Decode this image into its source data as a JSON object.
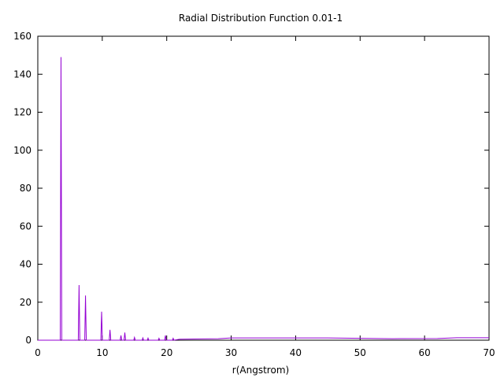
{
  "chart_data": {
    "type": "line",
    "title": "Radial Distribution Function 0.01-1",
    "xlabel": "r(Angstrom)",
    "ylabel": "",
    "xlim": [
      0,
      70
    ],
    "ylim": [
      0,
      160
    ],
    "x_ticks": [
      "0",
      "10",
      "20",
      "30",
      "40",
      "50",
      "60",
      "70"
    ],
    "y_ticks": [
      "0",
      "20",
      "40",
      "60",
      "80",
      "100",
      "120",
      "140",
      "160"
    ],
    "grid": false,
    "legend": "none",
    "series": [
      {
        "color": "#9400d3",
        "peaks": [
          {
            "r": 3.6,
            "g": 149
          },
          {
            "r": 6.4,
            "g": 29
          },
          {
            "r": 7.4,
            "g": 23.5
          },
          {
            "r": 9.9,
            "g": 15
          },
          {
            "r": 11.2,
            "g": 5.5
          },
          {
            "r": 12.9,
            "g": 2.5
          },
          {
            "r": 13.5,
            "g": 4
          },
          {
            "r": 15.0,
            "g": 1.5
          },
          {
            "r": 16.3,
            "g": 1.2
          },
          {
            "r": 17.1,
            "g": 1.1
          },
          {
            "r": 18.8,
            "g": 1.0
          },
          {
            "r": 19.8,
            "g": 2.5
          },
          {
            "r": 21.0,
            "g": 1.0
          }
        ],
        "baseline": [
          {
            "r": 22,
            "g": 0.5
          },
          {
            "r": 28,
            "g": 0.8
          },
          {
            "r": 30,
            "g": 1.2
          },
          {
            "r": 45,
            "g": 1.2
          },
          {
            "r": 55,
            "g": 0.8
          },
          {
            "r": 62,
            "g": 0.9
          },
          {
            "r": 65,
            "g": 1.3
          },
          {
            "r": 70,
            "g": 1.3
          }
        ]
      }
    ]
  }
}
